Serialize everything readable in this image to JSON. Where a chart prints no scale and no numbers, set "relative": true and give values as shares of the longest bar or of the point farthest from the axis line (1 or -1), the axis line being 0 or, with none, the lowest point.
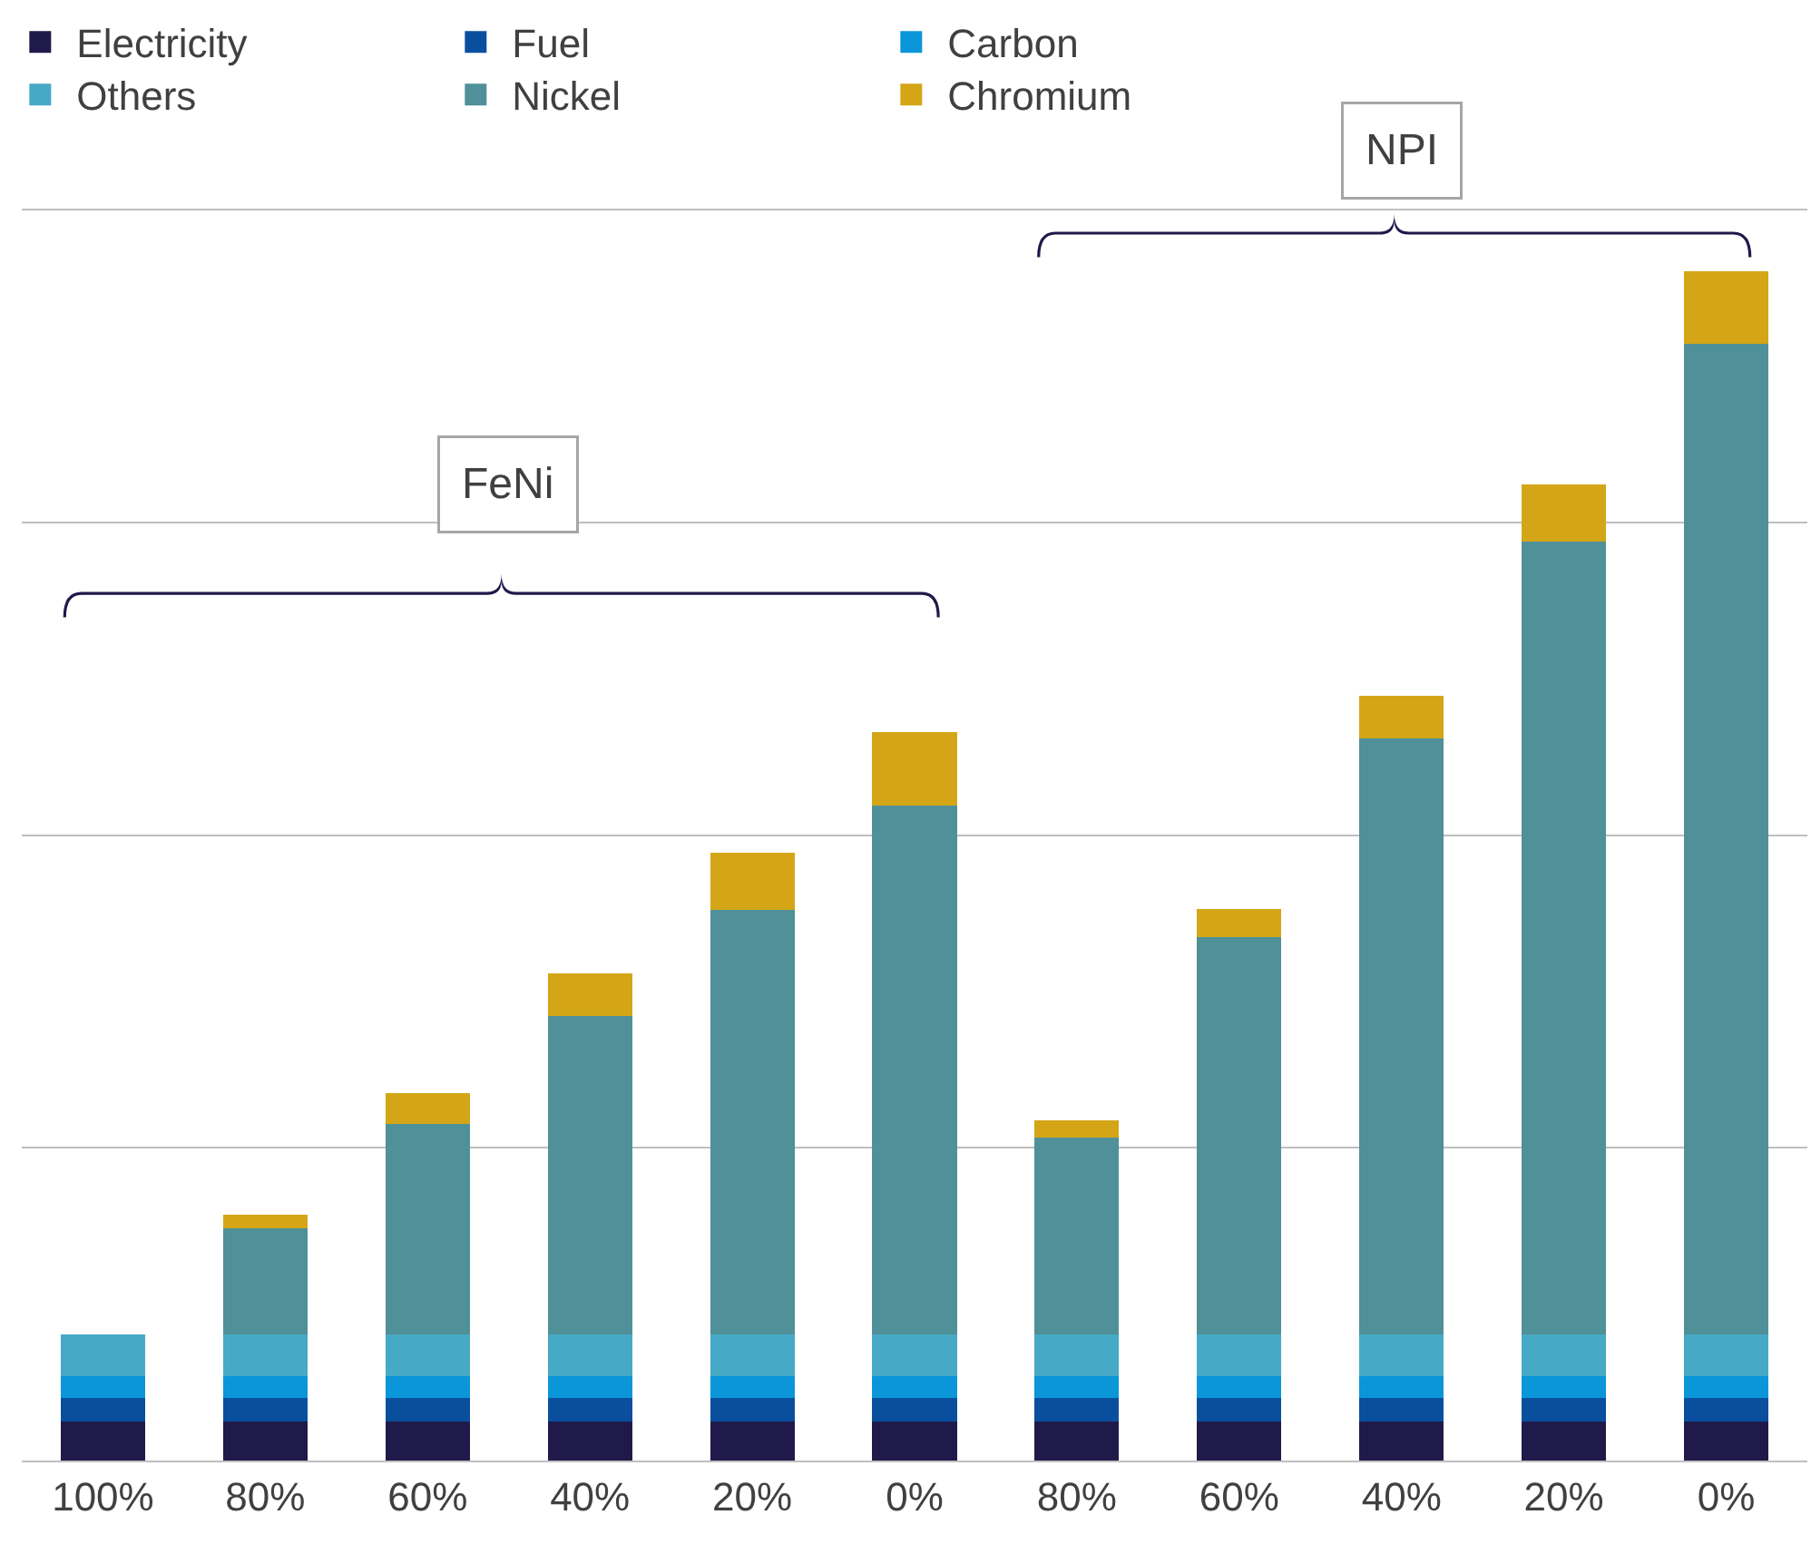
{
  "chart_data": {
    "type": "bar",
    "stacked": true,
    "relative": true,
    "grid": "y",
    "legend": "top left",
    "categories": [
      "100%",
      "80%",
      "60%",
      "40%",
      "20%",
      "0%",
      "80%",
      "60%",
      "40%",
      "20%",
      "0%"
    ],
    "annotations": [
      "FeNi",
      "NPI"
    ],
    "series": [
      {
        "name": "Electricity",
        "color": "#1f1a4a",
        "values": [
          0.033,
          0.033,
          0.033,
          0.033,
          0.033,
          0.033,
          0.033,
          0.033,
          0.033,
          0.033,
          0.033
        ]
      },
      {
        "name": "Fuel",
        "color": "#0a4f9e",
        "values": [
          0.02,
          0.02,
          0.02,
          0.02,
          0.02,
          0.02,
          0.02,
          0.02,
          0.02,
          0.02,
          0.02
        ]
      },
      {
        "name": "Carbon",
        "color": "#0a96d8",
        "values": [
          0.018,
          0.018,
          0.018,
          0.018,
          0.018,
          0.018,
          0.018,
          0.018,
          0.018,
          0.018,
          0.018
        ]
      },
      {
        "name": "Others",
        "color": "#46a9c6",
        "values": [
          0.035,
          0.035,
          0.035,
          0.035,
          0.035,
          0.035,
          0.035,
          0.035,
          0.035,
          0.035,
          0.035
        ]
      },
      {
        "name": "Nickel",
        "color": "#4f9099",
        "values": [
          null,
          0.089,
          0.177,
          0.268,
          0.357,
          0.445,
          0.166,
          0.334,
          0.501,
          0.667,
          0.833
        ]
      },
      {
        "name": "Chromium",
        "color": "#d4a617",
        "values": [
          null,
          0.012,
          0.026,
          0.036,
          0.048,
          0.062,
          0.014,
          0.024,
          0.036,
          0.048,
          0.061
        ]
      }
    ]
  }
}
